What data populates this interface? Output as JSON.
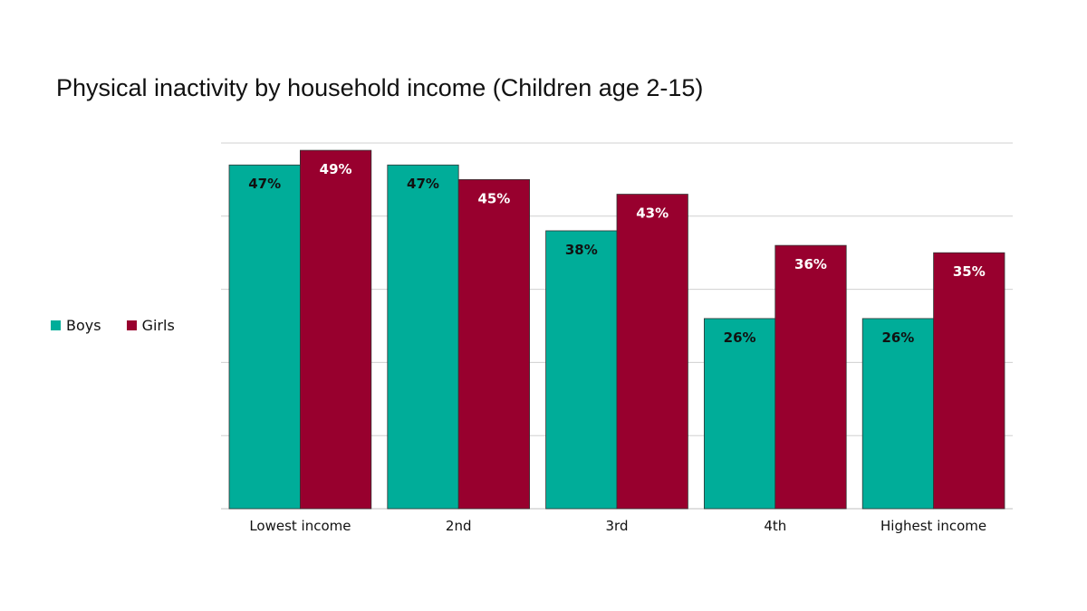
{
  "chart_data": {
    "type": "bar",
    "title": "Physical inactivity by household income (Children age 2-15)",
    "categories": [
      "Lowest income",
      "2nd",
      "3rd",
      "4th",
      "Highest income"
    ],
    "series": [
      {
        "name": "Boys",
        "values": [
          47,
          47,
          38,
          26,
          26
        ],
        "labels": [
          "47%",
          "47%",
          "38%",
          "26%",
          "26%"
        ],
        "color": "#00ad99",
        "label_color": "#111111"
      },
      {
        "name": "Girls",
        "values": [
          49,
          45,
          43,
          36,
          35
        ],
        "labels": [
          "49%",
          "45%",
          "43%",
          "36%",
          "35%"
        ],
        "color": "#98002e",
        "label_color": "#ffffff"
      }
    ],
    "ylim": [
      0,
      50
    ],
    "grid": true,
    "legend_position": "left"
  }
}
